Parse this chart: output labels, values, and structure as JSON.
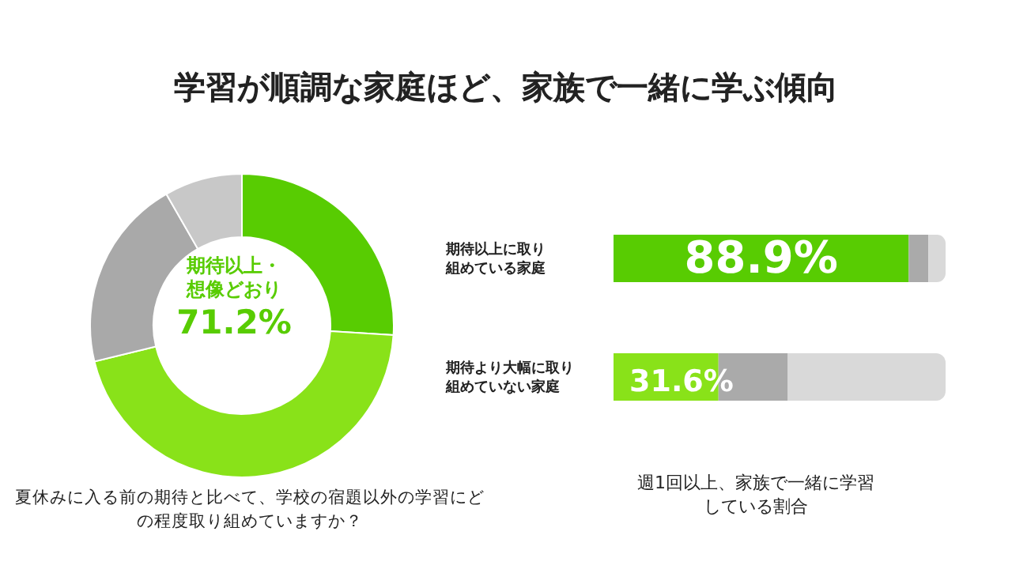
{
  "chart_data": [
    {
      "type": "donut",
      "title": "学習が順調な家庭ほど、家族で一緒に学ぶ傾向",
      "categories": [
        null,
        null,
        null,
        null
      ],
      "values": [
        26,
        45.2,
        20.5,
        8.3
      ],
      "colors": [
        "#58cc02",
        "#89e219",
        "#a9a9a9",
        "#c8c8c8"
      ],
      "legend": false,
      "annotations": [
        "期待以上・想像どおり",
        "71.2%",
        "夏休みに入る前の期待と比べて、学校の宿題以外の学習にどの程度取り組めていますか？"
      ]
    },
    {
      "type": "bar",
      "orientation": "horizontal",
      "stacked": true,
      "categories": [
        "期待以上に取り組めている家庭",
        "期待より大幅に取り組めていない家庭"
      ],
      "xlim": [
        0,
        100
      ],
      "tick_labels": "y",
      "grid": false,
      "legend": false,
      "series": [
        {
          "colors": [
            "#58cc02",
            "#89e219"
          ],
          "values": [
            88.9,
            31.6
          ],
          "value_labels": [
            "88.9%",
            "31.6%"
          ]
        },
        {
          "color": "#aaaaaa",
          "values": [
            5.9,
            20.9
          ]
        },
        {
          "color": "#d9d9d9",
          "values": [
            5.2,
            47.5
          ]
        }
      ],
      "annotations": [
        "週1回以上、家族で一緒に学習している割合"
      ]
    }
  ]
}
